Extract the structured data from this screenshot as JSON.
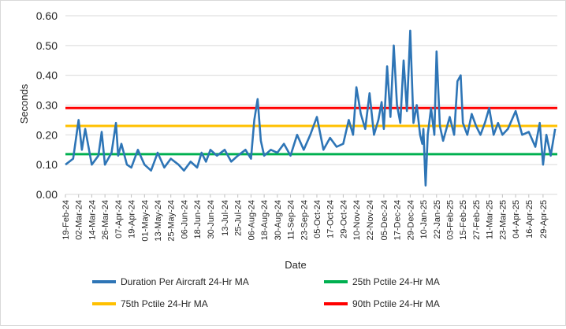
{
  "chart_data": {
    "type": "line",
    "title": "",
    "xlabel": "Date",
    "ylabel": "Seconds",
    "ylim": [
      0,
      0.6
    ],
    "xlim": [
      "2024-02-19",
      "2025-05-12"
    ],
    "y_ticks": [
      "0.00",
      "0.10",
      "0.20",
      "0.30",
      "0.40",
      "0.50",
      "0.60"
    ],
    "x_ticks": [
      "19-Feb-24",
      "02-Mar-24",
      "14-Mar-24",
      "26-Mar-24",
      "07-Apr-24",
      "19-Apr-24",
      "01-May-24",
      "13-May-24",
      "25-May-24",
      "06-Jun-24",
      "18-Jun-24",
      "30-Jun-24",
      "13-Jul-24",
      "25-Jul-24",
      "06-Aug-24",
      "18-Aug-24",
      "30-Aug-24",
      "11-Sep-24",
      "23-Sep-24",
      "05-Oct-24",
      "17-Oct-24",
      "29-Oct-24",
      "10-Nov-24",
      "22-Nov-24",
      "05-Dec-24",
      "17-Dec-24",
      "29-Dec-24",
      "10-Jan-25",
      "22-Jan-25",
      "03-Feb-25",
      "15-Feb-25",
      "27-Feb-25",
      "11-Mar-25",
      "23-Mar-25",
      "04-Apr-25",
      "16-Apr-25",
      "29-Apr-25"
    ],
    "grid": "horizontal",
    "legend_position": "bottom",
    "series": [
      {
        "name": "Duration Per Aircraft 24-Hr MA",
        "color": "#2e75b6",
        "x": [
          "2024-02-19",
          "2024-02-26",
          "2024-03-02",
          "2024-03-05",
          "2024-03-08",
          "2024-03-14",
          "2024-03-20",
          "2024-03-23",
          "2024-03-26",
          "2024-04-01",
          "2024-04-05",
          "2024-04-07",
          "2024-04-10",
          "2024-04-15",
          "2024-04-19",
          "2024-04-25",
          "2024-05-01",
          "2024-05-07",
          "2024-05-10",
          "2024-05-13",
          "2024-05-19",
          "2024-05-25",
          "2024-06-01",
          "2024-06-06",
          "2024-06-12",
          "2024-06-18",
          "2024-06-22",
          "2024-06-26",
          "2024-06-30",
          "2024-07-06",
          "2024-07-13",
          "2024-07-19",
          "2024-07-25",
          "2024-08-01",
          "2024-08-06",
          "2024-08-09",
          "2024-08-12",
          "2024-08-15",
          "2024-08-18",
          "2024-08-24",
          "2024-08-30",
          "2024-09-05",
          "2024-09-11",
          "2024-09-17",
          "2024-09-23",
          "2024-09-29",
          "2024-10-05",
          "2024-10-11",
          "2024-10-17",
          "2024-10-23",
          "2024-10-29",
          "2024-11-03",
          "2024-11-07",
          "2024-11-10",
          "2024-11-14",
          "2024-11-18",
          "2024-11-22",
          "2024-11-26",
          "2024-11-30",
          "2024-12-03",
          "2024-12-05",
          "2024-12-08",
          "2024-12-11",
          "2024-12-14",
          "2024-12-17",
          "2024-12-20",
          "2024-12-23",
          "2024-12-26",
          "2024-12-29",
          "2025-01-01",
          "2025-01-04",
          "2025-01-07",
          "2025-01-09",
          "2025-01-10",
          "2025-01-12",
          "2025-01-14",
          "2025-01-17",
          "2025-01-20",
          "2025-01-22",
          "2025-01-25",
          "2025-01-28",
          "2025-02-03",
          "2025-02-07",
          "2025-02-10",
          "2025-02-13",
          "2025-02-15",
          "2025-02-19",
          "2025-02-23",
          "2025-02-27",
          "2025-03-03",
          "2025-03-07",
          "2025-03-11",
          "2025-03-15",
          "2025-03-19",
          "2025-03-23",
          "2025-03-28",
          "2025-04-04",
          "2025-04-10",
          "2025-04-16",
          "2025-04-22",
          "2025-04-26",
          "2025-04-29",
          "2025-05-02",
          "2025-05-06",
          "2025-05-10"
        ],
        "values": [
          0.1,
          0.12,
          0.25,
          0.15,
          0.22,
          0.1,
          0.13,
          0.21,
          0.1,
          0.14,
          0.24,
          0.13,
          0.17,
          0.1,
          0.09,
          0.15,
          0.1,
          0.08,
          0.11,
          0.14,
          0.09,
          0.12,
          0.1,
          0.08,
          0.11,
          0.09,
          0.14,
          0.11,
          0.15,
          0.13,
          0.15,
          0.11,
          0.13,
          0.15,
          0.12,
          0.25,
          0.32,
          0.18,
          0.13,
          0.15,
          0.14,
          0.17,
          0.13,
          0.2,
          0.15,
          0.2,
          0.26,
          0.15,
          0.19,
          0.16,
          0.17,
          0.25,
          0.2,
          0.36,
          0.27,
          0.22,
          0.34,
          0.2,
          0.25,
          0.31,
          0.22,
          0.43,
          0.26,
          0.5,
          0.3,
          0.24,
          0.45,
          0.28,
          0.55,
          0.24,
          0.3,
          0.2,
          0.17,
          0.22,
          0.03,
          0.2,
          0.29,
          0.2,
          0.48,
          0.23,
          0.18,
          0.26,
          0.2,
          0.38,
          0.4,
          0.24,
          0.2,
          0.27,
          0.23,
          0.2,
          0.24,
          0.29,
          0.2,
          0.24,
          0.2,
          0.22,
          0.28,
          0.2,
          0.21,
          0.16,
          0.24,
          0.1,
          0.2,
          0.13,
          0.22
        ]
      },
      {
        "name": "25th Pctile 24-Hr MA",
        "color": "#00b050",
        "constant": 0.135
      },
      {
        "name": "75th Pctile 24-Hr MA",
        "color": "#ffc000",
        "constant": 0.23
      },
      {
        "name": "90th Pctile 24-Hr MA",
        "color": "#ff0000",
        "constant": 0.29
      }
    ],
    "legend_order": [
      "Duration Per Aircraft 24-Hr MA",
      "25th Pctile 24-Hr MA",
      "75th Pctile 24-Hr MA",
      "90th Pctile 24-Hr MA"
    ]
  }
}
